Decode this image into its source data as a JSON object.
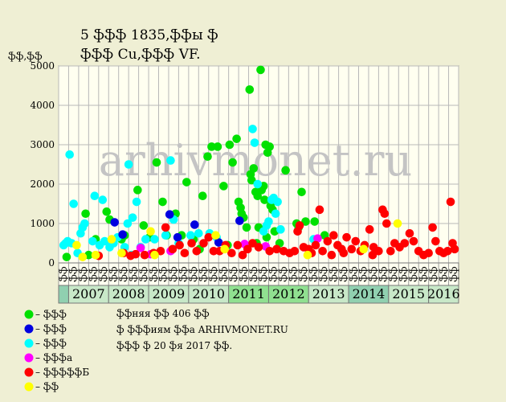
{
  "chart_data": {
    "type": "scatter",
    "title": "5 ֆֆֆ 1835,ֆֆы ֆ",
    "subtitle": "ֆֆֆ Cu,ֆֆֆ VF.",
    "ylabel": "ֆֆ,ֆֆ",
    "ylim": [
      0,
      5000
    ],
    "yticks": [
      0,
      1000,
      2000,
      3000,
      4000,
      5000
    ],
    "grid": true,
    "x_column_labels": [
      "ֆֆ",
      "ֆֆ",
      "ֆֆ",
      "ֆֆ",
      "ֆֆ",
      "ֆֆ",
      "ֆֆ",
      "ֆֆ",
      "ֆֆ",
      "ֆֆ",
      "ֆֆ",
      "ֆֆ",
      "ֆֆ",
      "ֆֆ",
      "ֆֆ",
      "ֆֆ",
      "ֆֆ",
      "ֆֆ",
      "ֆֆ",
      "ֆֆ",
      "ֆֆ",
      "ֆֆ",
      "ֆֆ",
      "ֆֆ",
      "ֆֆ",
      "ֆֆ",
      "ֆֆ",
      "ֆֆ",
      "ֆֆ",
      "ֆֆ",
      "ֆֆ",
      "ֆֆ",
      "ֆֆ",
      "ֆֆ",
      "ֆֆ",
      "ֆֆ",
      "ֆֆ",
      "ֆֆ",
      "ֆֆ",
      "ֆֆ"
    ],
    "years": [
      {
        "label": "2007",
        "color": "#C8E8C8"
      },
      {
        "label": "2008",
        "color": "#C8E8C8"
      },
      {
        "label": "2009",
        "color": "#C8E8C8"
      },
      {
        "label": "2010",
        "color": "#C8E8C8"
      },
      {
        "label": "2011",
        "color": "#90E090"
      },
      {
        "label": "2012",
        "color": "#90E090"
      },
      {
        "label": "2013",
        "color": "#C8E8C8"
      },
      {
        "label": "2014",
        "color": "#90D0B0"
      },
      {
        "label": "2015",
        "color": "#C8E8C8"
      },
      {
        "label": "2016",
        "color": "#C8E8C8"
      }
    ],
    "watermark": "arhivmonet.ru",
    "legend": [
      {
        "label": "– ֆֆֆ",
        "color": "#00E000"
      },
      {
        "label": "– ֆֆֆ",
        "color": "#0000E0"
      },
      {
        "label": "– ֆֆֆ",
        "color": "#00FFFF"
      },
      {
        "label": "– ֆֆֆа",
        "color": "#FF00FF"
      },
      {
        "label": "– ֆֆֆֆֆБ",
        "color": "#FF0000"
      },
      {
        "label": "– ֆֆ",
        "color": "#FFFF00"
      }
    ],
    "notes": [
      "ֆֆняя ֆֆ 406 ֆֆ",
      "ֆ ֆֆֆиям ֆֆа ARHIVMONET.RU",
      "ֆֆֆ ֆ 20 ֆя 2017 ֆֆ."
    ],
    "series": [
      {
        "color": "#00E000",
        "points": [
          {
            "x": 0.3,
            "y": 150
          },
          {
            "x": 2.2,
            "y": 1250
          },
          {
            "x": 3.2,
            "y": 600
          },
          {
            "x": 4.3,
            "y": 1300
          },
          {
            "x": 4.6,
            "y": 1100
          },
          {
            "x": 5.8,
            "y": 600
          },
          {
            "x": 6.1,
            "y": 700
          },
          {
            "x": 7.4,
            "y": 1850
          },
          {
            "x": 8.0,
            "y": 950
          },
          {
            "x": 9.3,
            "y": 2550
          },
          {
            "x": 9.9,
            "y": 1550
          },
          {
            "x": 10.3,
            "y": 700
          },
          {
            "x": 11.2,
            "y": 1250
          },
          {
            "x": 12.3,
            "y": 2050
          },
          {
            "x": 13.0,
            "y": 600
          },
          {
            "x": 13.9,
            "y": 1700
          },
          {
            "x": 14.4,
            "y": 2700
          },
          {
            "x": 14.8,
            "y": 2950
          },
          {
            "x": 15.4,
            "y": 2950
          },
          {
            "x": 16.0,
            "y": 1950
          },
          {
            "x": 16.6,
            "y": 3000
          },
          {
            "x": 16.9,
            "y": 2550
          },
          {
            "x": 17.3,
            "y": 3150
          },
          {
            "x": 17.5,
            "y": 1550
          },
          {
            "x": 17.7,
            "y": 1400
          },
          {
            "x": 17.8,
            "y": 1250
          },
          {
            "x": 18.0,
            "y": 1150
          },
          {
            "x": 18.3,
            "y": 900
          },
          {
            "x": 18.6,
            "y": 4400
          },
          {
            "x": 18.7,
            "y": 2250
          },
          {
            "x": 18.8,
            "y": 2100
          },
          {
            "x": 19.0,
            "y": 2400
          },
          {
            "x": 19.2,
            "y": 1800
          },
          {
            "x": 19.4,
            "y": 1700
          },
          {
            "x": 19.5,
            "y": 900
          },
          {
            "x": 19.7,
            "y": 4900
          },
          {
            "x": 19.8,
            "y": 1850
          },
          {
            "x": 20.0,
            "y": 1950
          },
          {
            "x": 20.1,
            "y": 1600
          },
          {
            "x": 20.2,
            "y": 3000
          },
          {
            "x": 20.4,
            "y": 2800
          },
          {
            "x": 20.6,
            "y": 2950
          },
          {
            "x": 20.7,
            "y": 1450
          },
          {
            "x": 20.9,
            "y": 1350
          },
          {
            "x": 21.1,
            "y": 800
          },
          {
            "x": 21.6,
            "y": 500
          },
          {
            "x": 22.2,
            "y": 2350
          },
          {
            "x": 23.3,
            "y": 1000
          },
          {
            "x": 23.5,
            "y": 900
          },
          {
            "x": 23.8,
            "y": 1800
          },
          {
            "x": 24.2,
            "y": 1050
          },
          {
            "x": 25.1,
            "y": 1050
          },
          {
            "x": 26.1,
            "y": 700
          },
          {
            "x": 19.3,
            "y": 500
          },
          {
            "x": 20.3,
            "y": 650
          },
          {
            "x": 16.4,
            "y": 450
          },
          {
            "x": 2.5,
            "y": 200
          },
          {
            "x": 8.6,
            "y": 650
          },
          {
            "x": 11.8,
            "y": 700
          },
          {
            "x": 13.6,
            "y": 350
          }
        ]
      },
      {
        "color": "#00FFFF",
        "points": [
          {
            "x": 0.0,
            "y": 450
          },
          {
            "x": 0.2,
            "y": 500
          },
          {
            "x": 0.4,
            "y": 550
          },
          {
            "x": 0.6,
            "y": 2750
          },
          {
            "x": 0.8,
            "y": 500
          },
          {
            "x": 1.0,
            "y": 1500
          },
          {
            "x": 1.7,
            "y": 750
          },
          {
            "x": 1.9,
            "y": 900
          },
          {
            "x": 2.1,
            "y": 1000
          },
          {
            "x": 2.9,
            "y": 550
          },
          {
            "x": 3.1,
            "y": 1700
          },
          {
            "x": 3.6,
            "y": 450
          },
          {
            "x": 3.9,
            "y": 1600
          },
          {
            "x": 4.1,
            "y": 550
          },
          {
            "x": 5.0,
            "y": 500
          },
          {
            "x": 5.4,
            "y": 650
          },
          {
            "x": 6.1,
            "y": 400
          },
          {
            "x": 6.4,
            "y": 1000
          },
          {
            "x": 6.5,
            "y": 2500
          },
          {
            "x": 6.9,
            "y": 1150
          },
          {
            "x": 7.3,
            "y": 1550
          },
          {
            "x": 7.7,
            "y": 400
          },
          {
            "x": 8.2,
            "y": 600
          },
          {
            "x": 9.1,
            "y": 600
          },
          {
            "x": 10.2,
            "y": 700
          },
          {
            "x": 10.7,
            "y": 2600
          },
          {
            "x": 11.0,
            "y": 1100
          },
          {
            "x": 11.5,
            "y": 500
          },
          {
            "x": 12.7,
            "y": 700
          },
          {
            "x": 13.5,
            "y": 750
          },
          {
            "x": 14.6,
            "y": 750
          },
          {
            "x": 15.3,
            "y": 650
          },
          {
            "x": 18.9,
            "y": 3400
          },
          {
            "x": 19.1,
            "y": 3050
          },
          {
            "x": 19.4,
            "y": 2000
          },
          {
            "x": 20.0,
            "y": 800
          },
          {
            "x": 20.3,
            "y": 950
          },
          {
            "x": 20.5,
            "y": 1050
          },
          {
            "x": 20.8,
            "y": 1600
          },
          {
            "x": 21.0,
            "y": 1650
          },
          {
            "x": 21.2,
            "y": 1250
          },
          {
            "x": 21.4,
            "y": 1550
          },
          {
            "x": 21.7,
            "y": 850
          },
          {
            "x": 25.0,
            "y": 600
          },
          {
            "x": 4.6,
            "y": 400
          },
          {
            "x": 1.4,
            "y": 250
          },
          {
            "x": 6.8,
            "y": 200
          }
        ]
      },
      {
        "color": "#0000E0",
        "points": [
          {
            "x": 5.1,
            "y": 1030
          },
          {
            "x": 5.9,
            "y": 720
          },
          {
            "x": 10.6,
            "y": 1230
          },
          {
            "x": 11.4,
            "y": 650
          },
          {
            "x": 13.1,
            "y": 970
          },
          {
            "x": 15.5,
            "y": 520
          },
          {
            "x": 17.6,
            "y": 1070
          }
        ]
      },
      {
        "color": "#FF00FF",
        "points": [
          {
            "x": 7.7,
            "y": 380
          },
          {
            "x": 8.7,
            "y": 220
          },
          {
            "x": 10.7,
            "y": 300
          },
          {
            "x": 18.1,
            "y": 480
          },
          {
            "x": 20.2,
            "y": 420
          },
          {
            "x": 25.4,
            "y": 620
          }
        ]
      },
      {
        "color": "#FF0000",
        "points": [
          {
            "x": 3.5,
            "y": 180
          },
          {
            "x": 6.0,
            "y": 250
          },
          {
            "x": 6.7,
            "y": 180
          },
          {
            "x": 7.2,
            "y": 220
          },
          {
            "x": 8.1,
            "y": 200
          },
          {
            "x": 9.0,
            "y": 250
          },
          {
            "x": 9.7,
            "y": 300
          },
          {
            "x": 10.2,
            "y": 900
          },
          {
            "x": 10.9,
            "y": 350
          },
          {
            "x": 11.6,
            "y": 450
          },
          {
            "x": 12.1,
            "y": 250
          },
          {
            "x": 12.8,
            "y": 500
          },
          {
            "x": 13.3,
            "y": 300
          },
          {
            "x": 14.0,
            "y": 500
          },
          {
            "x": 14.5,
            "y": 650
          },
          {
            "x": 15.0,
            "y": 300
          },
          {
            "x": 15.6,
            "y": 300
          },
          {
            "x": 16.2,
            "y": 450
          },
          {
            "x": 16.8,
            "y": 250
          },
          {
            "x": 17.4,
            "y": 450
          },
          {
            "x": 17.9,
            "y": 200
          },
          {
            "x": 18.4,
            "y": 350
          },
          {
            "x": 18.9,
            "y": 500
          },
          {
            "x": 19.5,
            "y": 400
          },
          {
            "x": 20.6,
            "y": 300
          },
          {
            "x": 21.3,
            "y": 350
          },
          {
            "x": 22.0,
            "y": 300
          },
          {
            "x": 22.6,
            "y": 250
          },
          {
            "x": 23.1,
            "y": 300
          },
          {
            "x": 23.4,
            "y": 800
          },
          {
            "x": 23.6,
            "y": 950
          },
          {
            "x": 24.0,
            "y": 400
          },
          {
            "x": 24.5,
            "y": 350
          },
          {
            "x": 25.2,
            "y": 450
          },
          {
            "x": 25.6,
            "y": 1350
          },
          {
            "x": 25.9,
            "y": 300
          },
          {
            "x": 26.4,
            "y": 550
          },
          {
            "x": 27.0,
            "y": 700
          },
          {
            "x": 27.4,
            "y": 450
          },
          {
            "x": 27.8,
            "y": 350
          },
          {
            "x": 28.3,
            "y": 650
          },
          {
            "x": 28.8,
            "y": 350
          },
          {
            "x": 29.2,
            "y": 550
          },
          {
            "x": 29.7,
            "y": 300
          },
          {
            "x": 30.1,
            "y": 450
          },
          {
            "x": 30.6,
            "y": 850
          },
          {
            "x": 31.0,
            "y": 400
          },
          {
            "x": 31.5,
            "y": 300
          },
          {
            "x": 31.9,
            "y": 1350
          },
          {
            "x": 32.1,
            "y": 1250
          },
          {
            "x": 32.3,
            "y": 1000
          },
          {
            "x": 32.7,
            "y": 300
          },
          {
            "x": 33.1,
            "y": 500
          },
          {
            "x": 33.6,
            "y": 400
          },
          {
            "x": 34.1,
            "y": 500
          },
          {
            "x": 34.6,
            "y": 750
          },
          {
            "x": 35.0,
            "y": 550
          },
          {
            "x": 35.5,
            "y": 300
          },
          {
            "x": 36.0,
            "y": 200
          },
          {
            "x": 36.5,
            "y": 250
          },
          {
            "x": 36.9,
            "y": 900
          },
          {
            "x": 37.2,
            "y": 550
          },
          {
            "x": 37.6,
            "y": 300
          },
          {
            "x": 38.0,
            "y": 250
          },
          {
            "x": 38.4,
            "y": 300
          },
          {
            "x": 38.7,
            "y": 1550
          },
          {
            "x": 38.9,
            "y": 500
          },
          {
            "x": 39.1,
            "y": 350
          },
          {
            "x": 24.8,
            "y": 250
          },
          {
            "x": 26.8,
            "y": 200
          },
          {
            "x": 28.0,
            "y": 250
          },
          {
            "x": 30.9,
            "y": 200
          }
        ]
      },
      {
        "color": "#FFFF00",
        "points": [
          {
            "x": 1.3,
            "y": 450
          },
          {
            "x": 1.9,
            "y": 150
          },
          {
            "x": 3.2,
            "y": 200
          },
          {
            "x": 4.8,
            "y": 600
          },
          {
            "x": 5.8,
            "y": 250
          },
          {
            "x": 8.7,
            "y": 800
          },
          {
            "x": 9.1,
            "y": 200
          },
          {
            "x": 15.2,
            "y": 700
          },
          {
            "x": 16.1,
            "y": 350
          },
          {
            "x": 24.4,
            "y": 200
          },
          {
            "x": 30.0,
            "y": 350
          },
          {
            "x": 33.4,
            "y": 1000
          }
        ]
      }
    ]
  }
}
